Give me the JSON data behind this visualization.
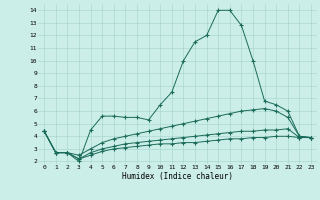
{
  "xlabel": "Humidex (Indice chaleur)",
  "background_color": "#cceee8",
  "grid_color": "#aad8d0",
  "line_color": "#1a6b5a",
  "x_values": [
    0,
    1,
    2,
    3,
    4,
    5,
    6,
    7,
    8,
    9,
    10,
    11,
    12,
    13,
    14,
    15,
    16,
    17,
    18,
    19,
    20,
    21,
    22,
    23
  ],
  "line1": [
    4.4,
    2.7,
    2.7,
    2.0,
    4.5,
    5.6,
    5.6,
    5.5,
    5.5,
    5.3,
    6.5,
    7.5,
    10.0,
    11.5,
    12.0,
    14.0,
    14.0,
    12.8,
    10.0,
    6.8,
    6.5,
    6.0,
    4.0,
    3.9
  ],
  "line2": [
    4.4,
    2.7,
    2.7,
    2.5,
    3.0,
    3.5,
    3.8,
    4.0,
    4.2,
    4.4,
    4.6,
    4.8,
    5.0,
    5.2,
    5.4,
    5.6,
    5.8,
    6.0,
    6.1,
    6.2,
    6.0,
    5.5,
    4.0,
    3.9
  ],
  "line3": [
    4.4,
    2.7,
    2.7,
    2.2,
    2.7,
    3.0,
    3.2,
    3.4,
    3.5,
    3.6,
    3.7,
    3.8,
    3.9,
    4.0,
    4.1,
    4.2,
    4.3,
    4.4,
    4.4,
    4.5,
    4.5,
    4.6,
    3.9,
    3.9
  ],
  "line4": [
    4.4,
    2.7,
    2.7,
    2.2,
    2.5,
    2.8,
    3.0,
    3.1,
    3.2,
    3.3,
    3.4,
    3.4,
    3.5,
    3.5,
    3.6,
    3.7,
    3.8,
    3.8,
    3.9,
    3.9,
    4.0,
    4.0,
    3.9,
    3.9
  ],
  "ylim": [
    1.8,
    14.5
  ],
  "xlim": [
    -0.5,
    23.5
  ],
  "yticks": [
    2,
    3,
    4,
    5,
    6,
    7,
    8,
    9,
    10,
    11,
    12,
    13,
    14
  ],
  "xticks": [
    0,
    1,
    2,
    3,
    4,
    5,
    6,
    7,
    8,
    9,
    10,
    11,
    12,
    13,
    14,
    15,
    16,
    17,
    18,
    19,
    20,
    21,
    22,
    23
  ]
}
